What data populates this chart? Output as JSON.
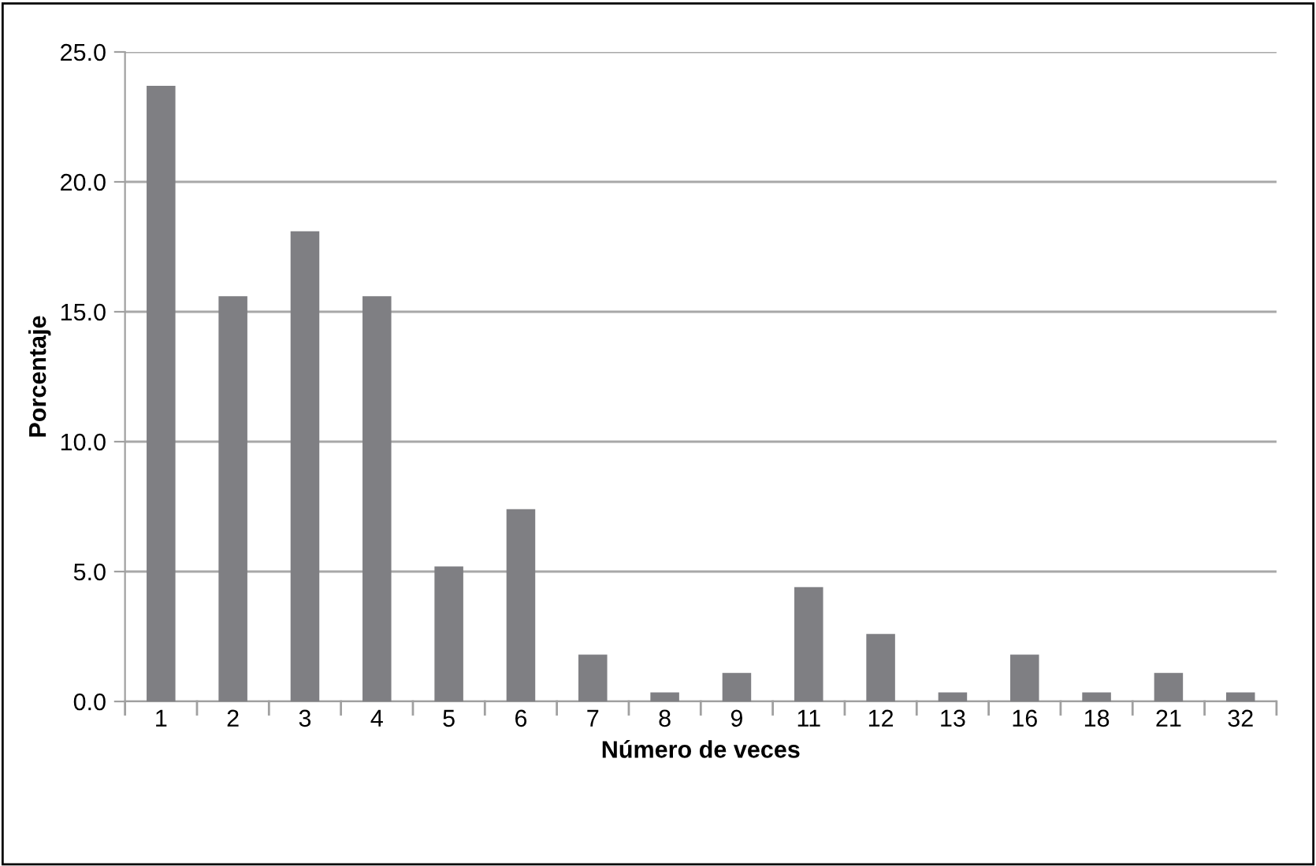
{
  "chart_data": {
    "type": "bar",
    "xlabel": "Número de veces",
    "ylabel": "Porcentaje",
    "categories": [
      "1",
      "2",
      "3",
      "4",
      "5",
      "6",
      "7",
      "8",
      "9",
      "11",
      "12",
      "13",
      "16",
      "18",
      "21",
      "32"
    ],
    "values": [
      23.7,
      15.6,
      18.1,
      15.6,
      5.2,
      7.4,
      1.8,
      0.35,
      1.1,
      4.4,
      2.6,
      0.35,
      1.8,
      0.35,
      1.1,
      0.35
    ],
    "color": "#7f7f83",
    "ylim": [
      0,
      25
    ],
    "yticks": [
      {
        "value": 0,
        "label": "0.0"
      },
      {
        "value": 5,
        "label": "5.0"
      },
      {
        "value": 10,
        "label": "10.0"
      },
      {
        "value": 15,
        "label": "15.0"
      },
      {
        "value": 20,
        "label": "20.0"
      },
      {
        "value": 25,
        "label": "25.0"
      }
    ],
    "grid": "y",
    "legend": false
  }
}
